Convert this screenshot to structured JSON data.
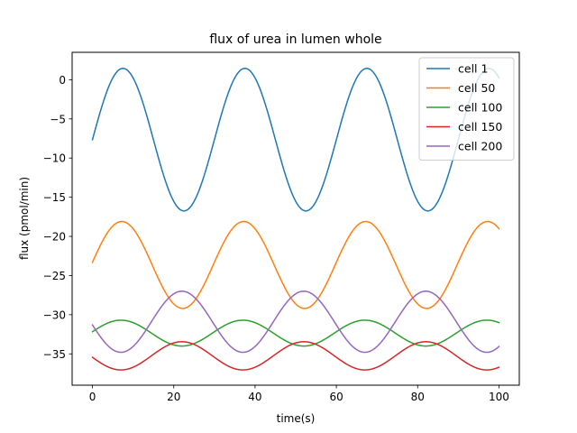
{
  "chart_data": {
    "type": "line",
    "title": "flux of urea in lumen whole",
    "xlabel": "time(s)",
    "ylabel": "flux (pmol/min)",
    "xlim": [
      -5,
      105
    ],
    "ylim": [
      -39,
      3.5
    ],
    "xticks": [
      0,
      20,
      40,
      60,
      80,
      100
    ],
    "yticks": [
      0,
      -5,
      -10,
      -15,
      -20,
      -25,
      -30,
      -35
    ],
    "xtick_labels": [
      "0",
      "20",
      "40",
      "60",
      "80",
      "100"
    ],
    "ytick_labels": [
      "0",
      "−5",
      "−10",
      "−15",
      "−20",
      "−25",
      "−30",
      "−35"
    ],
    "grid": false,
    "legend_position": "top-right",
    "period": 30,
    "series": [
      {
        "name": "cell 1",
        "color": "#1f77b4",
        "mean": -7.65,
        "amplitude": 9.1,
        "peak_time": 7.5
      },
      {
        "name": "cell 50",
        "color": "#ff7f0e",
        "mean": -23.65,
        "amplitude": 5.55,
        "peak_time": 7.2
      },
      {
        "name": "cell 100",
        "color": "#2ca02c",
        "mean": -32.35,
        "amplitude": 1.65,
        "peak_time": 7.0
      },
      {
        "name": "cell 150",
        "color": "#d62728",
        "mean": -35.25,
        "amplitude": 1.8,
        "peak_time": 22.0
      },
      {
        "name": "cell 200",
        "color": "#9467bd",
        "mean": -30.9,
        "amplitude": 3.9,
        "peak_time": 22.0
      }
    ]
  }
}
